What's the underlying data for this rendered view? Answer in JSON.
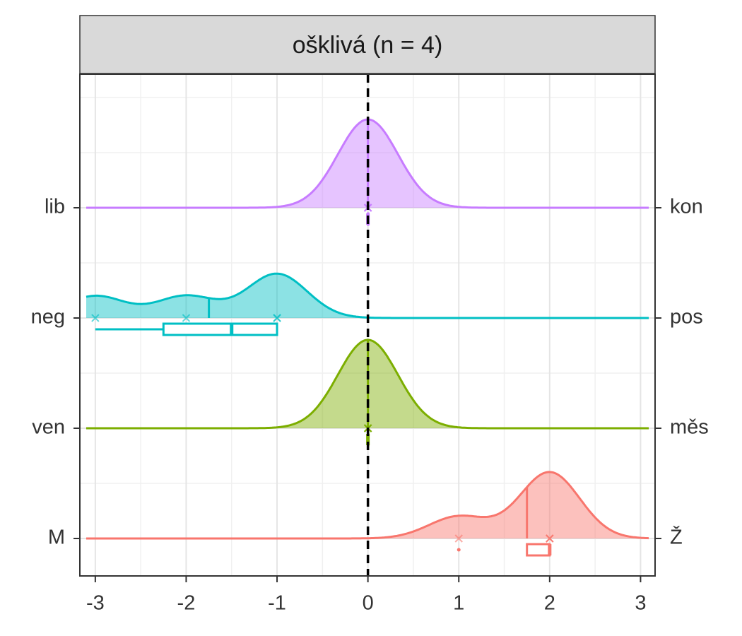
{
  "chart_data": {
    "type": "ridgeline",
    "title": "ošklivá (n = 4)",
    "xlim": [
      -3.17,
      3.16
    ],
    "xticks": [
      -3,
      -2,
      -1,
      0,
      1,
      2,
      3
    ],
    "vline": 0,
    "grid": true,
    "series": [
      {
        "name": "lib",
        "right_label": "kon",
        "color": "#c77cff",
        "values": [
          0,
          0,
          0,
          0
        ],
        "mean": 0,
        "box": {
          "ymin": 0,
          "lower": 0,
          "middle": 0,
          "upper": 0,
          "ymax": 0,
          "outliers": []
        }
      },
      {
        "name": "neg",
        "right_label": "pos",
        "color": "#00bfc4",
        "values": [
          -3,
          -2,
          -1,
          -1
        ],
        "mean": -1.75,
        "box": {
          "ymin": -3,
          "lower": -2.25,
          "middle": -1.5,
          "upper": -1,
          "ymax": -1,
          "outliers": []
        }
      },
      {
        "name": "ven",
        "right_label": "měs",
        "color": "#7cae00",
        "values": [
          0,
          0,
          0,
          0
        ],
        "mean": 0,
        "box": {
          "ymin": 0,
          "lower": 0,
          "middle": 0,
          "upper": 0,
          "ymax": 0,
          "outliers": []
        }
      },
      {
        "name": "M",
        "right_label": "Ž",
        "color": "#f8766d",
        "values": [
          1,
          2,
          2,
          2
        ],
        "mean": 1.75,
        "box": {
          "ymin": 2,
          "lower": 1.75,
          "middle": 2,
          "upper": 2,
          "ymax": 2,
          "outliers": [
            1
          ]
        }
      }
    ]
  }
}
